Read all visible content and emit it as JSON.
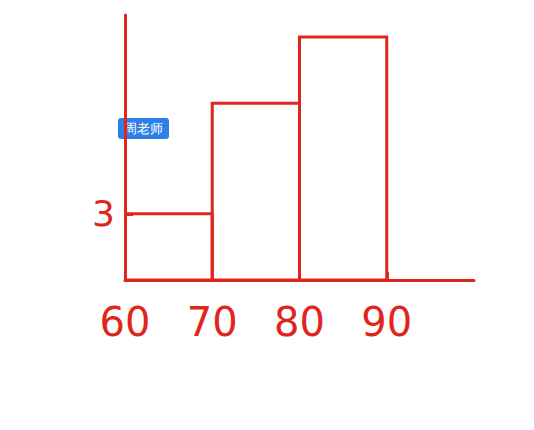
{
  "chart_data": {
    "type": "histogram",
    "annotation": "周老师",
    "bins": [
      60,
      70,
      80,
      90
    ],
    "counts": [
      3,
      8,
      11
    ],
    "color": "#e0261c",
    "xlim": [
      60,
      100
    ],
    "xticks": [
      60,
      70,
      80,
      90
    ],
    "ylim": [
      0,
      12
    ],
    "yticks": [
      3
    ],
    "grid": false
  }
}
